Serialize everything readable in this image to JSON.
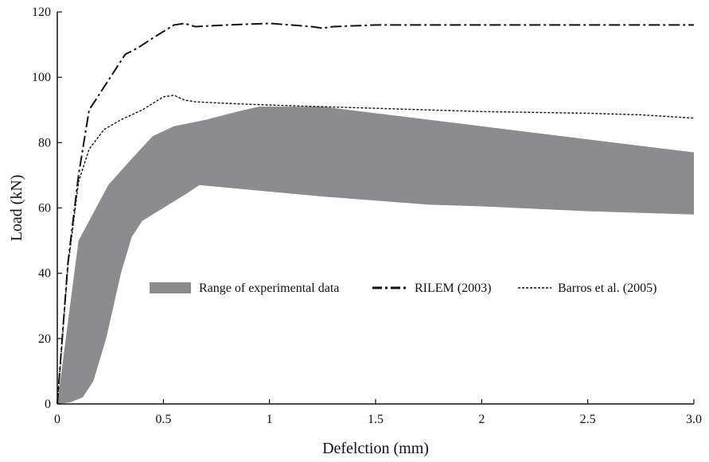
{
  "chart_data": {
    "type": "line",
    "title": "",
    "xlabel": "Defelction (mm)",
    "ylabel": "Load (kN)",
    "xlim": [
      0,
      3.0
    ],
    "ylim": [
      0,
      120
    ],
    "grid": false,
    "legend_placement": "center",
    "x_ticks": [
      {
        "value": 0,
        "label": "0"
      },
      {
        "value": 0.5,
        "label": "0.5"
      },
      {
        "value": 1,
        "label": "1"
      },
      {
        "value": 1.5,
        "label": "1.5"
      },
      {
        "value": 2,
        "label": "2"
      },
      {
        "value": 2.5,
        "label": "2.5"
      },
      {
        "value": 3.0,
        "label": "3.0"
      }
    ],
    "y_ticks": [
      {
        "value": 0,
        "label": "0"
      },
      {
        "value": 20,
        "label": "20"
      },
      {
        "value": 40,
        "label": "40"
      },
      {
        "value": 60,
        "label": "60"
      },
      {
        "value": 80,
        "label": "80"
      },
      {
        "value": 100,
        "label": "100"
      },
      {
        "value": 120,
        "label": "120"
      }
    ],
    "band": {
      "name": "Range of experimental data",
      "color": "#8c8c8f",
      "upper": [
        [
          0,
          0
        ],
        [
          0.1,
          50
        ],
        [
          0.15,
          56
        ],
        [
          0.24,
          67
        ],
        [
          0.35,
          75
        ],
        [
          0.45,
          82
        ],
        [
          0.55,
          85
        ],
        [
          0.7,
          87
        ],
        [
          0.85,
          89.5
        ],
        [
          0.95,
          91
        ],
        [
          1.25,
          91
        ],
        [
          1.5,
          89
        ],
        [
          2.0,
          85
        ],
        [
          2.5,
          81
        ],
        [
          3.0,
          77
        ]
      ],
      "lower": [
        [
          0,
          0
        ],
        [
          0.06,
          0.5
        ],
        [
          0.12,
          2
        ],
        [
          0.17,
          7
        ],
        [
          0.23,
          20
        ],
        [
          0.3,
          40
        ],
        [
          0.35,
          51
        ],
        [
          0.4,
          56
        ],
        [
          0.5,
          60
        ],
        [
          0.6,
          64
        ],
        [
          0.67,
          67
        ],
        [
          0.75,
          66.5
        ],
        [
          1.0,
          65
        ],
        [
          1.25,
          63.5
        ],
        [
          1.75,
          61
        ],
        [
          2.0,
          60.5
        ],
        [
          2.5,
          59
        ],
        [
          3.0,
          58
        ]
      ]
    },
    "series": [
      {
        "name": "RILEM (2003)",
        "style": "dash-dot",
        "color": "#111111",
        "points": [
          [
            0,
            0
          ],
          [
            0.05,
            43
          ],
          [
            0.1,
            70
          ],
          [
            0.15,
            90
          ],
          [
            0.25,
            100
          ],
          [
            0.32,
            107
          ],
          [
            0.38,
            109
          ],
          [
            0.45,
            112
          ],
          [
            0.55,
            116
          ],
          [
            0.6,
            116.5
          ],
          [
            0.65,
            115.5
          ],
          [
            0.8,
            116
          ],
          [
            1.0,
            116.5
          ],
          [
            1.1,
            116
          ],
          [
            1.2,
            115.5
          ],
          [
            1.25,
            115
          ],
          [
            1.3,
            115.5
          ],
          [
            1.5,
            116
          ],
          [
            2.0,
            116
          ],
          [
            2.5,
            116
          ],
          [
            3.0,
            116
          ]
        ]
      },
      {
        "name": "Barros et al. (2005)",
        "style": "dotted",
        "color": "#111111",
        "points": [
          [
            0,
            0
          ],
          [
            0.05,
            42
          ],
          [
            0.1,
            68
          ],
          [
            0.15,
            78
          ],
          [
            0.22,
            84
          ],
          [
            0.3,
            87
          ],
          [
            0.4,
            90
          ],
          [
            0.5,
            94
          ],
          [
            0.55,
            94.5
          ],
          [
            0.6,
            93
          ],
          [
            0.65,
            92.5
          ],
          [
            0.8,
            92
          ],
          [
            1.0,
            91.5
          ],
          [
            1.5,
            90.5
          ],
          [
            2.0,
            89.5
          ],
          [
            2.5,
            89
          ],
          [
            2.75,
            88.5
          ],
          [
            3.0,
            87.5
          ]
        ]
      }
    ]
  }
}
